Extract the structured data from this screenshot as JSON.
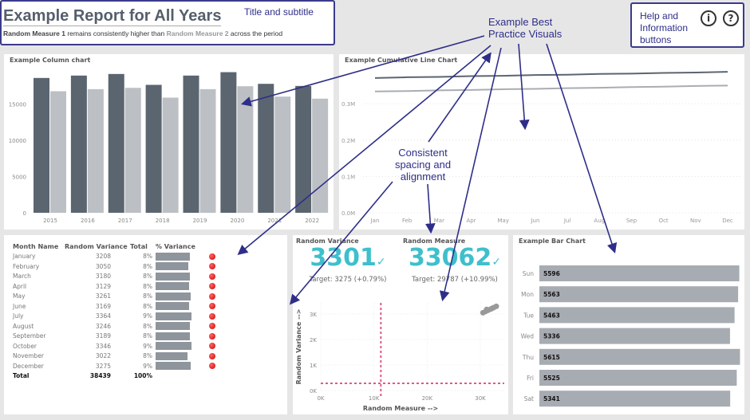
{
  "header": {
    "title": "Example Report for All Years",
    "subtitle_m1": "Random Measure 1",
    "subtitle_mid": " remains consistently higher than ",
    "subtitle_m2": "Random Measure 2",
    "subtitle_end": " across the period"
  },
  "annotations": {
    "title_subtitle": "Title and subtitle",
    "best_practice": "Example Best Practice Visuals",
    "spacing": "Consistent spacing and alignment",
    "help": "Help and Information buttons"
  },
  "help_buttons": {
    "info_icon": "info-icon",
    "info_glyph": "i",
    "help_icon": "question-icon",
    "help_glyph": "?"
  },
  "colors": {
    "dark": "#5b6570",
    "light": "#bcc0c4",
    "kpi": "#3ebfcc",
    "annotation": "#2e2e8a",
    "ref_line": "#e0588a",
    "bar": "#a7acb2"
  },
  "chart_data": [
    {
      "type": "bar",
      "title": "Example Column chart",
      "categories": [
        "2015",
        "2016",
        "2017",
        "2018",
        "2019",
        "2020",
        "2021",
        "2022"
      ],
      "ylim": [
        0,
        20000
      ],
      "yticks": [
        0,
        5000,
        10000,
        15000
      ],
      "series": [
        {
          "values": [
            18590,
            18920,
            19140,
            17640,
            18920,
            19390,
            17780,
            17490
          ]
        },
        {
          "values": [
            16760,
            17050,
            17230,
            15880,
            17050,
            17450,
            16020,
            15740
          ]
        }
      ]
    },
    {
      "type": "line",
      "title": "Example Cumulative Line Chart",
      "categories": [
        "Jan",
        "Feb",
        "Mar",
        "Apr",
        "May",
        "Jun",
        "Jul",
        "Aug",
        "Sep",
        "Oct",
        "Nov",
        "Dec"
      ],
      "ylim": [
        0,
        0.4
      ],
      "yticks": [
        "0.0M",
        "0.1M",
        "0.2M",
        "0.3M"
      ],
      "series": [
        {
          "values": [
            0.371,
            0.373,
            0.374,
            0.376,
            0.377,
            0.379,
            0.38,
            0.382,
            0.383,
            0.385,
            0.386,
            0.388
          ]
        },
        {
          "values": [
            0.334,
            0.335,
            0.337,
            0.338,
            0.34,
            0.341,
            0.343,
            0.344,
            0.346,
            0.347,
            0.349,
            0.35
          ]
        }
      ]
    },
    {
      "type": "scatter",
      "xlabel": "Random Measure -->",
      "ylabel": "Random Variance -->",
      "xlim": [
        0,
        35000
      ],
      "ylim": [
        0,
        3500
      ],
      "xticks": [
        "0K",
        "10K",
        "20K",
        "30K"
      ],
      "yticks": [
        "0K",
        "1K",
        "2K",
        "3K"
      ],
      "ref_x": 11300,
      "ref_y": 280,
      "points": [
        [
          30500,
          3050
        ],
        [
          31000,
          3100
        ],
        [
          31500,
          3150
        ],
        [
          32000,
          3200
        ],
        [
          32500,
          3250
        ],
        [
          33000,
          3300
        ],
        [
          31200,
          3180
        ],
        [
          32200,
          3220
        ]
      ]
    },
    {
      "type": "bar",
      "orientation": "horizontal",
      "title": "Example Bar Chart",
      "categories": [
        "Sun",
        "Mon",
        "Tue",
        "Wed",
        "Thu",
        "Fri",
        "Sat"
      ],
      "values": [
        5596,
        5563,
        5463,
        5336,
        5615,
        5525,
        5341
      ],
      "xlim": [
        0,
        5650
      ]
    },
    {
      "type": "table",
      "columns": [
        "Month Name",
        "Random Variance",
        "Total",
        "% Variance"
      ],
      "rows": [
        [
          "January",
          "3208",
          "8%"
        ],
        [
          "February",
          "3050",
          "8%"
        ],
        [
          "March",
          "3180",
          "8%"
        ],
        [
          "April",
          "3129",
          "8%"
        ],
        [
          "May",
          "3261",
          "8%"
        ],
        [
          "June",
          "3169",
          "8%"
        ],
        [
          "July",
          "3364",
          "9%"
        ],
        [
          "August",
          "3246",
          "8%"
        ],
        [
          "September",
          "3189",
          "8%"
        ],
        [
          "October",
          "3346",
          "9%"
        ],
        [
          "November",
          "3022",
          "8%"
        ],
        [
          "December",
          "3275",
          "9%"
        ]
      ],
      "total": [
        "Total",
        "38439",
        "100%"
      ],
      "status": "red"
    }
  ],
  "kpis": [
    {
      "label": "Random Variance",
      "value": "3301",
      "target": "Target: 3275 (+0.79%)"
    },
    {
      "label": "Random Measure",
      "value": "33062",
      "target": "Target: 29787 (+10.99%)"
    }
  ]
}
